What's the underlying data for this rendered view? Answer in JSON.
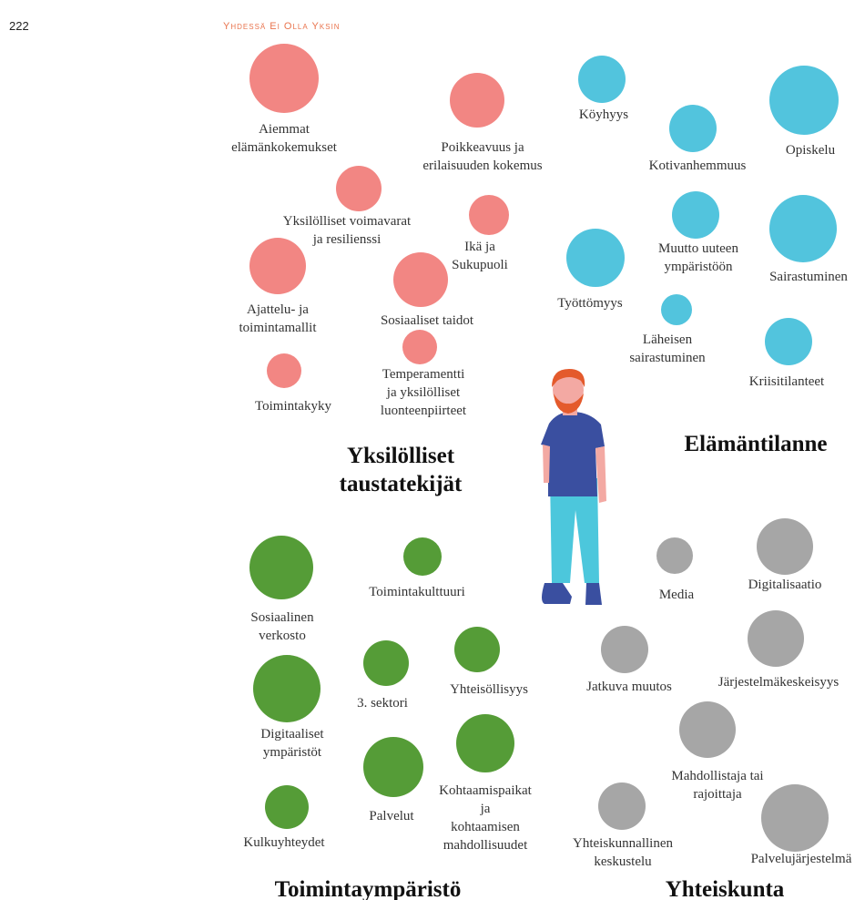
{
  "page_number": "222",
  "header": "Yhdessä ei olla yksin",
  "groups": [
    {
      "color": "#f28683",
      "title": [
        "Yksilölliset",
        "taustatekijät"
      ],
      "items": [
        {
          "label": [
            "Aiemmat",
            "elämänkokemukset"
          ]
        },
        {
          "label": [
            "Poikkeavuus ja",
            "erilaisuuden kokemus"
          ]
        },
        {
          "label": [
            "Yksilölliset voimavarat",
            "ja resilienssi"
          ]
        },
        {
          "label": [
            "Ikä ja",
            "Sukupuoli"
          ]
        },
        {
          "label": [
            "Ajattelu- ja",
            "toimintamallit"
          ]
        },
        {
          "label": [
            "Sosiaaliset taidot"
          ]
        },
        {
          "label": [
            "Temperamentti",
            "ja yksilölliset",
            "luonteenpiirteet"
          ]
        },
        {
          "label": [
            "Toimintakyky"
          ]
        }
      ]
    },
    {
      "color": "#52c4dd",
      "title": [
        "Elämäntilanne"
      ],
      "items": [
        {
          "label": [
            "Köyhyys"
          ]
        },
        {
          "label": [
            "Opiskelu"
          ]
        },
        {
          "label": [
            "Kotivanhemmuus"
          ]
        },
        {
          "label": [
            "Muutto uuteen",
            "ympäristöön"
          ]
        },
        {
          "label": [
            "Sairastuminen"
          ]
        },
        {
          "label": [
            "Työttömyys"
          ]
        },
        {
          "label": [
            "Läheisen",
            "sairastuminen"
          ]
        },
        {
          "label": [
            "Kriisitilanteet"
          ]
        }
      ]
    },
    {
      "color": "#559c37",
      "title": [
        "Toimintaympäristö"
      ],
      "items": [
        {
          "label": [
            "Sosiaalinen",
            "verkosto"
          ]
        },
        {
          "label": [
            "Toimintakulttuuri"
          ]
        },
        {
          "label": [
            "3. sektori"
          ]
        },
        {
          "label": [
            "Yhteisöllisyys"
          ]
        },
        {
          "label": [
            "Digitaaliset",
            "ympäristöt"
          ]
        },
        {
          "label": [
            "Palvelut"
          ]
        },
        {
          "label": [
            "Kohtaamispaikat",
            "ja",
            "kohtaamisen",
            "mahdollisuudet"
          ]
        },
        {
          "label": [
            "Kulkuyhteydet"
          ]
        }
      ]
    },
    {
      "color": "#a6a6a6",
      "title": [
        "Yhteiskunta"
      ],
      "items": [
        {
          "label": [
            "Media"
          ]
        },
        {
          "label": [
            "Digitalisaatio"
          ]
        },
        {
          "label": [
            "Jatkuva muutos"
          ]
        },
        {
          "label": [
            "Järjestelmäkeskeisyys"
          ]
        },
        {
          "label": [
            "Mahdollistaja tai",
            "rajoittaja"
          ]
        },
        {
          "label": [
            "Yhteiskunnallinen",
            "keskustelu"
          ]
        },
        {
          "label": [
            "Palvelujärjestelmä"
          ]
        }
      ]
    }
  ]
}
